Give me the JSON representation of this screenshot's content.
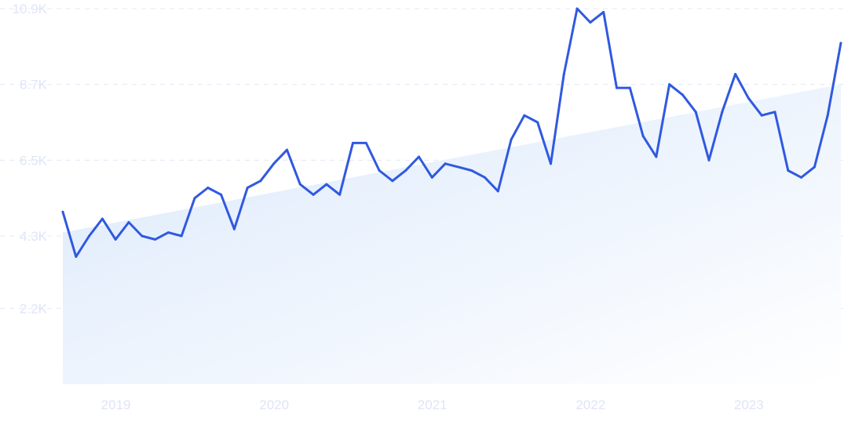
{
  "chart_data": {
    "type": "line",
    "title": "",
    "xlabel": "",
    "ylabel": "",
    "ylim": [
      0,
      10900
    ],
    "y_ticks": [
      {
        "value": 2200,
        "label": "2.2K"
      },
      {
        "value": 4300,
        "label": "4.3K"
      },
      {
        "value": 6500,
        "label": "6.5K"
      },
      {
        "value": 8700,
        "label": "8.7K"
      },
      {
        "value": 10900,
        "label": "10.9K"
      }
    ],
    "x_ticks": [
      {
        "value": "2019-01",
        "label": "2019"
      },
      {
        "value": "2020-01",
        "label": "2020"
      },
      {
        "value": "2021-01",
        "label": "2021"
      },
      {
        "value": "2022-01",
        "label": "2022"
      },
      {
        "value": "2023-01",
        "label": "2023"
      }
    ],
    "grid": true,
    "line_color": "#3059e0",
    "trend_fill_color": "#dceafb",
    "trend": {
      "x": [
        "2018-11",
        "2023-10"
      ],
      "y": [
        4400,
        8700
      ]
    },
    "series": [
      {
        "x": [
          "2018-11",
          "2018-12",
          "2019-01",
          "2019-02",
          "2019-03",
          "2019-04",
          "2019-05",
          "2019-06",
          "2019-07",
          "2019-08",
          "2019-09",
          "2019-10",
          "2019-11",
          "2019-12",
          "2020-01",
          "2020-02",
          "2020-03",
          "2020-04",
          "2020-05",
          "2020-06",
          "2020-07",
          "2020-08",
          "2020-09",
          "2020-10",
          "2020-11",
          "2020-12",
          "2021-01",
          "2021-02",
          "2021-03",
          "2021-04",
          "2021-05",
          "2021-06",
          "2021-07",
          "2021-08",
          "2021-09",
          "2021-10",
          "2021-11",
          "2021-12",
          "2022-01",
          "2022-02",
          "2022-03",
          "2022-04",
          "2022-05",
          "2022-06",
          "2022-07",
          "2022-08",
          "2022-09",
          "2022-10",
          "2022-11",
          "2022-12",
          "2023-01",
          "2023-02",
          "2023-03",
          "2023-04",
          "2023-05",
          "2023-06",
          "2023-07",
          "2023-08",
          "2023-09",
          "2023-10"
        ],
        "y": [
          5000,
          3700,
          4300,
          4800,
          4200,
          4700,
          4300,
          4200,
          4400,
          4300,
          5400,
          5700,
          5500,
          4500,
          5700,
          5900,
          6400,
          6800,
          5800,
          5500,
          5800,
          5500,
          7000,
          7000,
          6200,
          5900,
          6200,
          6600,
          6000,
          6400,
          6300,
          6200,
          6000,
          5600,
          7100,
          7800,
          7600,
          6400,
          9000,
          10900,
          10500,
          10800,
          8600,
          8600,
          7200,
          6600,
          8700,
          8400,
          7900,
          6500,
          7900,
          9000,
          8300,
          7800,
          7900,
          6200,
          6000,
          6300,
          7800,
          9900
        ]
      }
    ]
  }
}
